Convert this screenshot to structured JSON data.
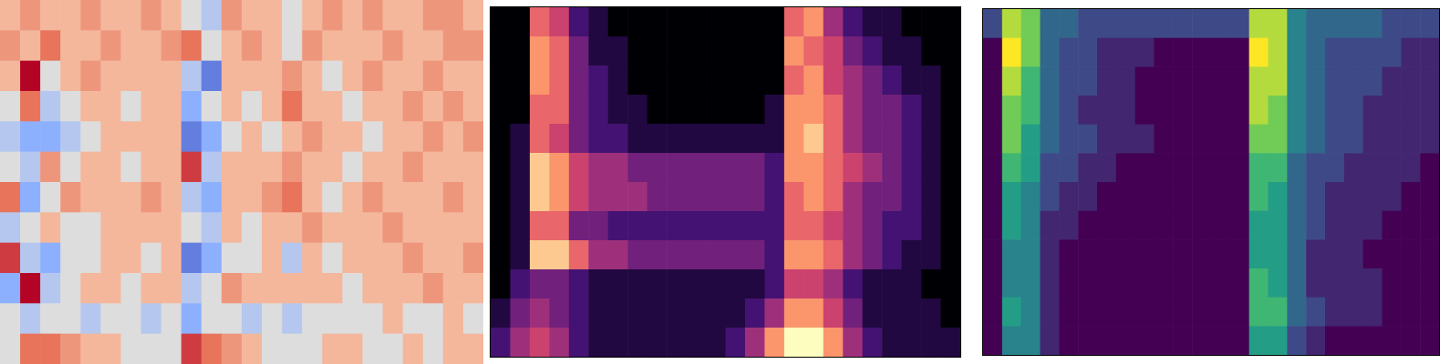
{
  "chart_data": [
    {
      "type": "heatmap",
      "tick_labels": false,
      "color_range": [
        -5,
        5
      ],
      "cells": [
        [
          1,
          2,
          1,
          1,
          2,
          1,
          1,
          2,
          1,
          -1,
          -2,
          2,
          1,
          1,
          -1,
          1,
          2,
          1,
          2,
          1,
          1,
          2,
          2,
          1
        ],
        [
          2,
          1,
          3,
          1,
          1,
          2,
          1,
          1,
          2,
          3,
          -1,
          1,
          2,
          1,
          -1,
          2,
          1,
          1,
          1,
          2,
          1,
          1,
          2,
          2
        ],
        [
          1,
          5,
          -1,
          1,
          2,
          1,
          1,
          1,
          1,
          -2,
          -4,
          1,
          1,
          1,
          2,
          1,
          -1,
          1,
          2,
          1,
          1,
          2,
          1,
          1
        ],
        [
          -1,
          3,
          -2,
          -1,
          1,
          1,
          -1,
          1,
          1,
          -3,
          -1,
          1,
          -1,
          1,
          3,
          1,
          1,
          -1,
          1,
          1,
          2,
          1,
          2,
          1
        ],
        [
          -2,
          -3,
          -3,
          -2,
          -1,
          1,
          1,
          1,
          1,
          -4,
          -3,
          -1,
          1,
          -1,
          1,
          2,
          1,
          1,
          -1,
          1,
          1,
          2,
          1,
          2
        ],
        [
          -1,
          -2,
          2,
          -1,
          1,
          1,
          -1,
          1,
          1,
          4,
          -2,
          1,
          1,
          1,
          2,
          1,
          1,
          -1,
          1,
          1,
          2,
          1,
          1,
          1
        ],
        [
          3,
          -3,
          -1,
          2,
          1,
          1,
          1,
          2,
          1,
          -2,
          -3,
          1,
          1,
          2,
          3,
          1,
          -1,
          1,
          2,
          1,
          1,
          1,
          2,
          1
        ],
        [
          -2,
          -1,
          1,
          -1,
          -1,
          1,
          1,
          1,
          1,
          -1,
          -2,
          1,
          -1,
          1,
          1,
          2,
          1,
          1,
          1,
          2,
          1,
          1,
          1,
          1
        ],
        [
          4,
          -2,
          -3,
          -1,
          -1,
          1,
          1,
          -1,
          1,
          -4,
          -3,
          -1,
          -1,
          1,
          -2,
          1,
          -1,
          1,
          1,
          1,
          2,
          1,
          1,
          2
        ],
        [
          -3,
          5,
          -2,
          -1,
          1,
          1,
          -1,
          1,
          1,
          -2,
          -1,
          2,
          1,
          1,
          1,
          1,
          1,
          -1,
          1,
          1,
          1,
          2,
          1,
          1
        ],
        [
          -1,
          -2,
          -1,
          -1,
          -2,
          -1,
          -1,
          -2,
          -1,
          -3,
          -1,
          -1,
          -2,
          -1,
          -2,
          -1,
          -1,
          -1,
          -1,
          1,
          -1,
          -1,
          1,
          -1
        ],
        [
          -1,
          3,
          3,
          2,
          1,
          1,
          -1,
          -1,
          -1,
          4,
          3,
          2,
          1,
          -1,
          -1,
          -1,
          1,
          1,
          -1,
          -1,
          1,
          -1,
          1,
          1
        ]
      ]
    },
    {
      "type": "heatmap",
      "tick_labels": false,
      "color_range": [
        0,
        9
      ],
      "cells": [
        [
          0,
          0,
          6,
          5,
          2,
          1,
          0,
          0,
          0,
          0,
          0,
          0,
          0,
          0,
          0,
          6,
          7,
          4,
          2,
          1,
          1,
          0,
          0,
          0
        ],
        [
          0,
          0,
          7,
          6,
          3,
          1,
          1,
          0,
          0,
          0,
          0,
          0,
          0,
          0,
          0,
          7,
          6,
          5,
          3,
          2,
          1,
          1,
          0,
          0
        ],
        [
          0,
          0,
          7,
          6,
          3,
          2,
          1,
          0,
          0,
          0,
          0,
          0,
          0,
          0,
          0,
          6,
          7,
          5,
          4,
          3,
          2,
          1,
          1,
          0
        ],
        [
          0,
          0,
          6,
          6,
          3,
          2,
          1,
          1,
          0,
          0,
          0,
          0,
          0,
          0,
          1,
          7,
          7,
          6,
          4,
          3,
          3,
          2,
          1,
          0
        ],
        [
          0,
          1,
          6,
          5,
          3,
          2,
          2,
          1,
          1,
          1,
          1,
          1,
          1,
          1,
          1,
          7,
          8,
          6,
          4,
          3,
          3,
          2,
          1,
          0
        ],
        [
          0,
          1,
          8,
          7,
          5,
          4,
          4,
          3,
          3,
          3,
          3,
          3,
          3,
          3,
          2,
          7,
          7,
          6,
          5,
          4,
          3,
          2,
          1,
          0
        ],
        [
          0,
          1,
          8,
          7,
          5,
          4,
          4,
          4,
          3,
          3,
          3,
          3,
          3,
          3,
          2,
          6,
          7,
          6,
          4,
          3,
          3,
          2,
          1,
          0
        ],
        [
          0,
          1,
          6,
          6,
          3,
          3,
          2,
          2,
          2,
          2,
          2,
          2,
          2,
          2,
          2,
          6,
          6,
          5,
          4,
          3,
          2,
          2,
          1,
          0
        ],
        [
          0,
          1,
          8,
          8,
          6,
          4,
          4,
          3,
          3,
          3,
          3,
          3,
          3,
          3,
          2,
          7,
          7,
          6,
          4,
          3,
          2,
          1,
          1,
          0
        ],
        [
          0,
          2,
          3,
          3,
          2,
          1,
          1,
          1,
          1,
          1,
          1,
          1,
          1,
          1,
          2,
          5,
          5,
          4,
          2,
          1,
          1,
          1,
          0,
          0
        ],
        [
          1,
          3,
          4,
          3,
          2,
          1,
          1,
          1,
          1,
          1,
          1,
          1,
          1,
          2,
          4,
          7,
          7,
          5,
          3,
          1,
          1,
          1,
          1,
          0
        ],
        [
          2,
          4,
          5,
          4,
          2,
          1,
          1,
          1,
          1,
          1,
          1,
          1,
          2,
          4,
          7,
          9,
          9,
          7,
          4,
          2,
          1,
          1,
          1,
          1
        ]
      ]
    },
    {
      "type": "heatmap",
      "tick_labels": false,
      "color_range": [
        0,
        9
      ],
      "cells": [
        [
          2,
          8,
          7,
          3,
          3,
          2,
          2,
          2,
          2,
          2,
          2,
          2,
          2,
          2,
          8,
          8,
          4,
          3,
          3,
          3,
          3,
          2,
          2,
          2
        ],
        [
          0,
          9,
          7,
          3,
          2,
          2,
          1,
          1,
          1,
          0,
          0,
          0,
          0,
          0,
          9,
          8,
          4,
          3,
          2,
          2,
          2,
          2,
          1,
          1
        ],
        [
          0,
          8,
          6,
          3,
          2,
          2,
          1,
          1,
          0,
          0,
          0,
          0,
          0,
          0,
          8,
          8,
          4,
          3,
          2,
          2,
          2,
          1,
          1,
          1
        ],
        [
          0,
          7,
          6,
          3,
          2,
          1,
          1,
          1,
          0,
          0,
          0,
          0,
          0,
          0,
          8,
          7,
          4,
          3,
          2,
          2,
          1,
          1,
          1,
          1
        ],
        [
          0,
          7,
          5,
          3,
          2,
          2,
          1,
          1,
          1,
          0,
          0,
          0,
          0,
          0,
          7,
          7,
          4,
          3,
          2,
          2,
          1,
          1,
          1,
          1
        ],
        [
          0,
          6,
          5,
          2,
          2,
          1,
          1,
          0,
          0,
          0,
          0,
          0,
          0,
          0,
          6,
          6,
          3,
          2,
          2,
          1,
          1,
          1,
          1,
          0
        ],
        [
          0,
          5,
          4,
          2,
          1,
          1,
          0,
          0,
          0,
          0,
          0,
          0,
          0,
          0,
          6,
          5,
          3,
          2,
          1,
          1,
          1,
          1,
          0,
          0
        ],
        [
          0,
          5,
          4,
          1,
          1,
          0,
          0,
          0,
          0,
          0,
          0,
          0,
          0,
          0,
          5,
          5,
          3,
          2,
          1,
          1,
          1,
          0,
          0,
          0
        ],
        [
          0,
          4,
          4,
          1,
          0,
          0,
          0,
          0,
          0,
          0,
          0,
          0,
          0,
          0,
          5,
          5,
          3,
          1,
          1,
          1,
          0,
          0,
          0,
          0
        ],
        [
          0,
          4,
          4,
          1,
          0,
          0,
          0,
          0,
          0,
          0,
          0,
          0,
          0,
          0,
          6,
          5,
          3,
          1,
          1,
          1,
          1,
          0,
          0,
          0
        ],
        [
          0,
          5,
          4,
          1,
          0,
          0,
          0,
          0,
          0,
          0,
          0,
          0,
          0,
          0,
          6,
          6,
          3,
          2,
          1,
          1,
          1,
          0,
          0,
          0
        ],
        [
          0,
          4,
          4,
          1,
          0,
          0,
          0,
          0,
          0,
          0,
          0,
          0,
          0,
          0,
          5,
          5,
          2,
          1,
          0,
          0,
          0,
          0,
          0,
          0
        ]
      ]
    }
  ]
}
